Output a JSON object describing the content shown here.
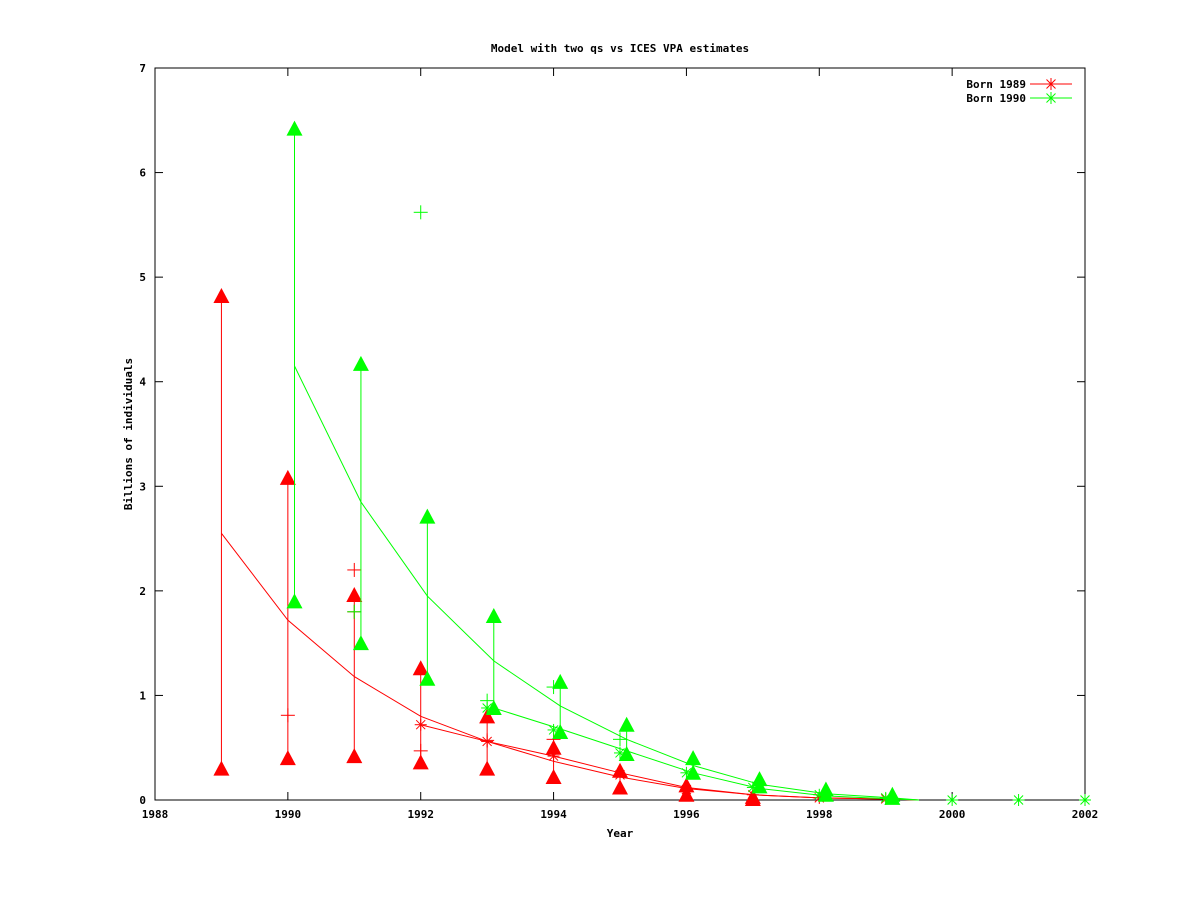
{
  "chart_data": {
    "type": "line",
    "title": "Model with two qs vs ICES VPA estimates",
    "xlabel": "Year",
    "ylabel": "Billions of individuals",
    "xlim": [
      1988,
      2002
    ],
    "ylim": [
      0,
      7
    ],
    "xticks": [
      1988,
      1990,
      1992,
      1994,
      1996,
      1998,
      2000,
      2002
    ],
    "yticks": [
      0,
      1,
      2,
      3,
      4,
      5,
      6,
      7
    ],
    "grid": false,
    "legend_position": "top-right",
    "series": [
      {
        "name": "Born 1989",
        "color": "#ff0000",
        "model_line": {
          "x": [
            1989,
            1990,
            1991,
            1992,
            1993,
            1994,
            1995,
            1996,
            1997,
            1998,
            1999,
            1999.5
          ],
          "y": [
            2.55,
            1.72,
            1.18,
            0.8,
            0.56,
            0.37,
            0.22,
            0.11,
            0.05,
            0.02,
            0.01,
            0.0
          ]
        },
        "second_line": {
          "x": [
            1992,
            1993,
            1994,
            1995,
            1996,
            1997,
            1998,
            1999,
            1999.5
          ],
          "y": [
            0.72,
            0.56,
            0.42,
            0.26,
            0.12,
            0.05,
            0.02,
            0.01,
            0.0
          ]
        },
        "ranges": [
          {
            "x": 1989,
            "low": 0.3,
            "high": 4.82
          },
          {
            "x": 1990,
            "low": 0.4,
            "high": 3.08
          },
          {
            "x": 1991,
            "low": 0.42,
            "high": 1.96
          },
          {
            "x": 1992,
            "low": 0.36,
            "high": 1.26
          },
          {
            "x": 1993,
            "low": 0.3,
            "high": 0.8
          },
          {
            "x": 1994,
            "low": 0.22,
            "high": 0.5
          },
          {
            "x": 1995,
            "low": 0.12,
            "high": 0.28
          },
          {
            "x": 1996,
            "low": 0.05,
            "high": 0.14
          },
          {
            "x": 1997,
            "low": 0.01,
            "high": 0.03
          }
        ],
        "plus_points": [
          {
            "x": 1990,
            "y": 0.81
          },
          {
            "x": 1991,
            "y": 2.2
          },
          {
            "x": 1991,
            "y": 1.8
          },
          {
            "x": 1992,
            "y": 0.47
          },
          {
            "x": 1993,
            "y": 0.57
          },
          {
            "x": 1994,
            "y": 0.58
          }
        ],
        "star_points": [
          {
            "x": 1992,
            "y": 0.72
          },
          {
            "x": 1993,
            "y": 0.56
          },
          {
            "x": 1994,
            "y": 0.42
          },
          {
            "x": 1995,
            "y": 0.24
          },
          {
            "x": 1996,
            "y": 0.1
          },
          {
            "x": 1997,
            "y": 0.05
          },
          {
            "x": 1998,
            "y": 0.02
          },
          {
            "x": 1999,
            "y": 0.01
          }
        ]
      },
      {
        "name": "Born 1990",
        "color": "#00ff00",
        "model_line": {
          "x": [
            1990.1,
            1991.1,
            1992.1,
            1993.1,
            1994.1,
            1995.1,
            1996.1,
            1997.1,
            1998.1,
            1999.1,
            1999.5
          ],
          "y": [
            4.15,
            2.85,
            1.95,
            1.33,
            0.9,
            0.58,
            0.33,
            0.15,
            0.06,
            0.02,
            0.0
          ]
        },
        "second_line": {
          "x": [
            1993.1,
            1994.1,
            1995.1,
            1996.1,
            1997.1,
            1998.1,
            1999.1,
            1999.5
          ],
          "y": [
            0.88,
            0.68,
            0.47,
            0.26,
            0.11,
            0.04,
            0.01,
            0.0
          ]
        },
        "ranges": [
          {
            "x": 1990.1,
            "low": 1.9,
            "high": 6.42
          },
          {
            "x": 1991.1,
            "low": 1.5,
            "high": 4.17
          },
          {
            "x": 1992.1,
            "low": 1.16,
            "high": 2.71
          },
          {
            "x": 1993.1,
            "low": 0.88,
            "high": 1.76
          },
          {
            "x": 1994.1,
            "low": 0.65,
            "high": 1.13
          },
          {
            "x": 1995.1,
            "low": 0.44,
            "high": 0.72
          },
          {
            "x": 1996.1,
            "low": 0.26,
            "high": 0.4
          },
          {
            "x": 1997.1,
            "low": 0.13,
            "high": 0.2
          },
          {
            "x": 1998.1,
            "low": 0.05,
            "high": 0.1
          },
          {
            "x": 1999.1,
            "low": 0.02,
            "high": 0.05
          }
        ],
        "plus_points": [
          {
            "x": 1991,
            "y": 1.8
          },
          {
            "x": 1992,
            "y": 5.62
          },
          {
            "x": 1993,
            "y": 0.95
          },
          {
            "x": 1994,
            "y": 1.08
          },
          {
            "x": 1995,
            "y": 0.58
          }
        ],
        "star_points": [
          {
            "x": 1993,
            "y": 0.88
          },
          {
            "x": 1994,
            "y": 0.67
          },
          {
            "x": 1995,
            "y": 0.45
          },
          {
            "x": 1996,
            "y": 0.26
          },
          {
            "x": 1997,
            "y": 0.12
          },
          {
            "x": 1998,
            "y": 0.05
          },
          {
            "x": 1999,
            "y": 0.02
          },
          {
            "x": 2000,
            "y": 0.0
          },
          {
            "x": 2001,
            "y": 0.0
          },
          {
            "x": 2002,
            "y": 0.0
          }
        ]
      }
    ]
  }
}
